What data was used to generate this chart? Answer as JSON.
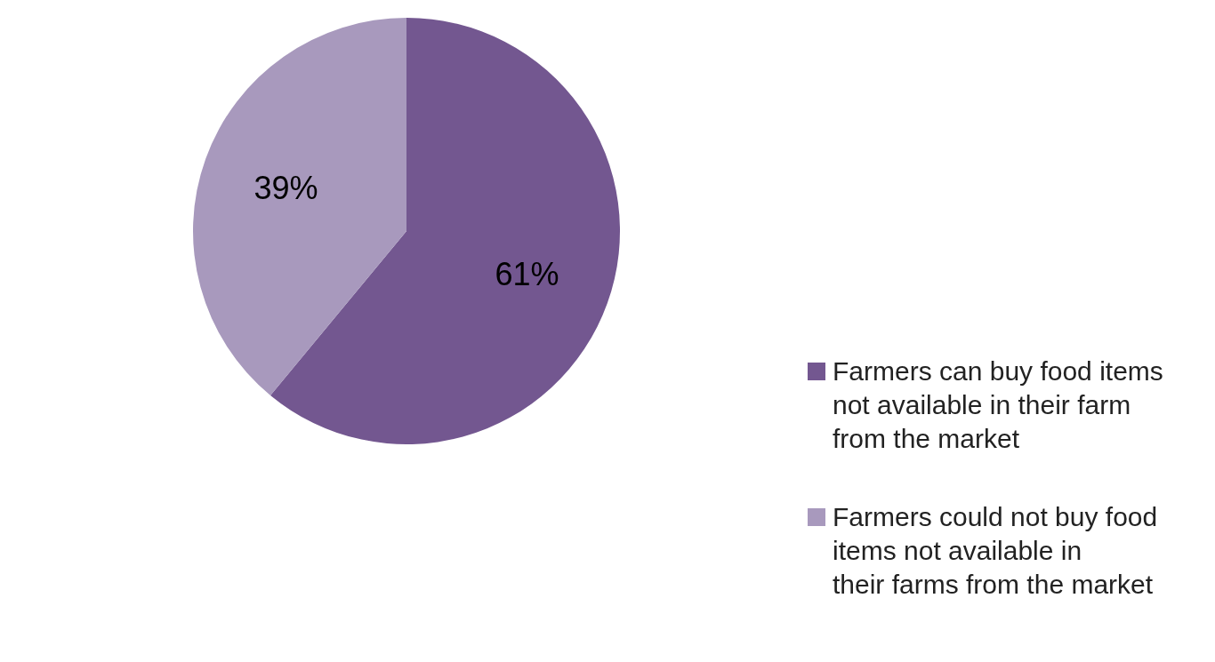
{
  "chart_data": {
    "type": "pie",
    "categories": [
      "Farmers can buy food items not available in their farm from the market",
      "Farmers could not buy food items not available in their farms from the market"
    ],
    "values": [
      61,
      39
    ],
    "colors": [
      "#735790",
      "#a899bd"
    ],
    "value_labels": [
      "61%",
      "39%"
    ],
    "legend": "bottom right"
  }
}
